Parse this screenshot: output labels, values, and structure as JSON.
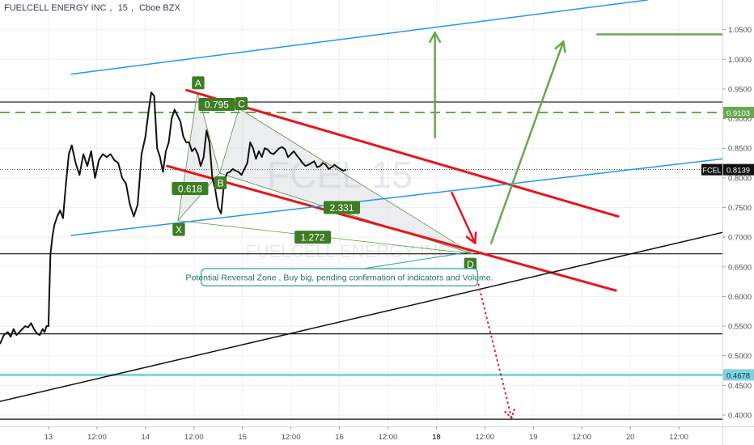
{
  "header": {
    "symbol_name": "FUELCELL ENERGY INC",
    "interval": "15",
    "exchange": "Cboe BZX"
  },
  "watermark": {
    "ticker": "FCEL",
    "interval": "15",
    "name": "FUELCELL ENERGY INC"
  },
  "colors": {
    "price_line": "#111111",
    "red_trend": "#e8151b",
    "blue_trend": "#2196f3",
    "green_arrow": "#6aa84f",
    "dashed_green": "#6aa84f",
    "cyan_support": "#7fd3e0",
    "pattern_fill": "#c9ccd1",
    "label_green": "#3d7d23"
  },
  "chart_data": {
    "type": "line",
    "title": "FUELCELL ENERGY INC, 15, Cboe BZX",
    "xlabel": "",
    "ylabel": "",
    "ylim": [
      0.385,
      1.1
    ],
    "y_ticks": [
      0.4,
      0.45,
      0.5,
      0.55,
      0.6,
      0.65,
      0.7,
      0.75,
      0.8,
      0.85,
      0.9,
      0.95,
      1.0,
      1.05
    ],
    "y_tick_labels": [
      "0.4000",
      "0.4500",
      "0.5000",
      "0.5500",
      "0.6000",
      "0.6500",
      "0.7000",
      "0.7500",
      "0.8000",
      "0.8500",
      "0.9000",
      "0.9500",
      "1.0000",
      "1.0500"
    ],
    "x_range": [
      0,
      14.9
    ],
    "x_ticks": [
      1.0,
      2.0,
      3.0,
      4.0,
      5.0,
      6.0,
      7.0,
      8.0,
      9.0,
      10.0,
      11.0,
      12.0,
      13.0,
      14.0
    ],
    "x_tick_labels": [
      "13",
      "12:00",
      "14",
      "12:00",
      "15",
      "12:00",
      "16",
      "12:00",
      "18",
      "12:00",
      "19",
      "12:00",
      "20",
      "12:00"
    ],
    "x_tick_bold": [
      false,
      false,
      false,
      false,
      false,
      false,
      false,
      false,
      true,
      false,
      false,
      false,
      false,
      false
    ],
    "price": {
      "name": "FCEL",
      "last": 0.8139,
      "last_label": "0.8139",
      "x": [
        0.0,
        0.08,
        0.16,
        0.22,
        0.28,
        0.34,
        0.4,
        0.46,
        0.52,
        0.58,
        0.64,
        0.7,
        0.76,
        0.82,
        0.88,
        0.92,
        0.96,
        1.0,
        1.04,
        1.08,
        1.12,
        1.18,
        1.24,
        1.3,
        1.36,
        1.42,
        1.48,
        1.56,
        1.64,
        1.72,
        1.8,
        1.88,
        1.96,
        2.04,
        2.12,
        2.2,
        2.28,
        2.36,
        2.44,
        2.52,
        2.6,
        2.68,
        2.76,
        2.84,
        2.92,
        3.0,
        3.06,
        3.12,
        3.18,
        3.24,
        3.3,
        3.36,
        3.42,
        3.48,
        3.54,
        3.6,
        3.66,
        3.72,
        3.78,
        3.84,
        3.9,
        3.96,
        4.02,
        4.08,
        4.14,
        4.2,
        4.26,
        4.32,
        4.38,
        4.44,
        4.5,
        4.56,
        4.62,
        4.68,
        4.74,
        4.8,
        4.86,
        4.92,
        4.98,
        5.04,
        5.1,
        5.16,
        5.22,
        5.28,
        5.34,
        5.4,
        5.46,
        5.52,
        5.58,
        5.64,
        5.7,
        5.76,
        5.82,
        5.88,
        5.94,
        6.0,
        6.06,
        6.12,
        6.18,
        6.24,
        6.3,
        6.36,
        6.42,
        6.48,
        6.54,
        6.6,
        6.66,
        6.72,
        6.78,
        6.84,
        6.9,
        6.96,
        7.02,
        7.08,
        7.14
      ],
      "y": [
        0.52,
        0.535,
        0.54,
        0.532,
        0.545,
        0.535,
        0.54,
        0.545,
        0.55,
        0.548,
        0.555,
        0.545,
        0.538,
        0.535,
        0.545,
        0.54,
        0.55,
        0.55,
        0.67,
        0.7,
        0.72,
        0.735,
        0.745,
        0.732,
        0.79,
        0.84,
        0.855,
        0.825,
        0.805,
        0.84,
        0.82,
        0.845,
        0.8,
        0.83,
        0.84,
        0.835,
        0.84,
        0.83,
        0.825,
        0.8,
        0.79,
        0.755,
        0.735,
        0.755,
        0.84,
        0.87,
        0.91,
        0.944,
        0.938,
        0.85,
        0.835,
        0.81,
        0.845,
        0.86,
        0.9,
        0.915,
        0.905,
        0.895,
        0.87,
        0.86,
        0.86,
        0.845,
        0.85,
        0.84,
        0.82,
        0.835,
        0.88,
        0.86,
        0.8,
        0.78,
        0.75,
        0.74,
        0.79,
        0.808,
        0.81,
        0.815,
        0.812,
        0.81,
        0.805,
        0.815,
        0.825,
        0.86,
        0.85,
        0.832,
        0.845,
        0.835,
        0.85,
        0.848,
        0.842,
        0.84,
        0.845,
        0.85,
        0.852,
        0.848,
        0.835,
        0.84,
        0.845,
        0.838,
        0.832,
        0.825,
        0.82,
        0.822,
        0.825,
        0.828,
        0.818,
        0.82,
        0.825,
        0.822,
        0.815,
        0.818,
        0.822,
        0.818,
        0.815,
        0.812,
        0.8139
      ]
    },
    "harmonic_pattern": {
      "points": [
        {
          "label": "X",
          "x": 3.67,
          "y": 0.728
        },
        {
          "label": "A",
          "x": 4.07,
          "y": 0.944
        },
        {
          "label": "B",
          "x": 4.53,
          "y": 0.808
        },
        {
          "label": "C",
          "x": 4.93,
          "y": 0.917
        },
        {
          "label": "D",
          "x": 9.75,
          "y": 0.672
        }
      ],
      "ratios": [
        {
          "label": "0.618",
          "x": 3.92,
          "y": 0.782
        },
        {
          "label": "0.795",
          "x": 4.47,
          "y": 0.924
        },
        {
          "label": "2.331",
          "x": 7.05,
          "y": 0.75
        },
        {
          "label": "1.272",
          "x": 6.45,
          "y": 0.7
        }
      ]
    },
    "horizontal_levels": [
      {
        "y": 0.928,
        "style": "black"
      },
      {
        "y": 0.9103,
        "style": "green-dashed",
        "label": "0.9103"
      },
      {
        "y": 0.8139,
        "style": "dotted"
      },
      {
        "y": 0.672,
        "style": "black"
      },
      {
        "y": 0.537,
        "style": "black"
      },
      {
        "y": 0.4678,
        "style": "cyan",
        "label": "0.4678"
      },
      {
        "y": 0.393,
        "style": "black"
      }
    ],
    "trend_lines": [
      {
        "name": "upper-red-channel",
        "style": "red",
        "x1": 3.85,
        "y1": 0.948,
        "x2": 12.75,
        "y2": 0.735
      },
      {
        "name": "lower-red-channel",
        "style": "red",
        "x1": 3.45,
        "y1": 0.82,
        "x2": 12.7,
        "y2": 0.61
      },
      {
        "name": "blue-channel-upper",
        "style": "blue",
        "x1": 1.47,
        "y1": 0.975,
        "x2": 13.35,
        "y2": 1.1
      },
      {
        "name": "blue-channel-lower",
        "style": "blue",
        "x1": 1.47,
        "y1": 0.703,
        "x2": 14.9,
        "y2": 0.832
      },
      {
        "name": "black-support",
        "style": "black",
        "x1": 0.0,
        "y1": 0.423,
        "x2": 14.9,
        "y2": 0.708
      }
    ],
    "arrows": [
      {
        "style": "green",
        "x1": 8.97,
        "y1": 0.868,
        "x2": 8.97,
        "y2": 1.045
      },
      {
        "style": "green",
        "x1": 10.13,
        "y1": 0.69,
        "x2": 11.62,
        "y2": 1.03
      },
      {
        "style": "red",
        "x1": 9.32,
        "y1": 0.775,
        "x2": 9.8,
        "y2": 0.69
      },
      {
        "style": "red-dotted",
        "x1": 9.75,
        "y1": 0.66,
        "x2": 10.55,
        "y2": 0.395
      }
    ],
    "green_target_line": {
      "x1": 12.3,
      "x2": 14.9,
      "y": 1.042
    },
    "annotation": {
      "text": "Potential Reversal Zone , Buy big, pending confirmation of indicators and Volume.",
      "x1": 4.15,
      "x2": 9.85,
      "y_top": 0.647,
      "y_bottom": 0.618
    }
  }
}
